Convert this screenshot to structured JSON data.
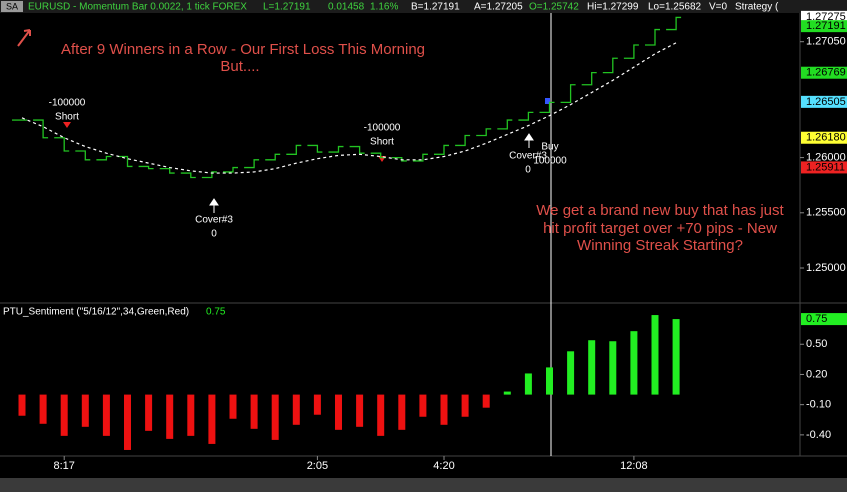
{
  "header": {
    "badge": "SA",
    "symbol": "EURUSD - Momentum Bar 0.0022, 1 tick  FOREX",
    "last": "L=1.27191",
    "change": "0.01458",
    "pct": "1.16%",
    "bid": "B=1.27191",
    "ask": "A=1.27205",
    "open": "O=1.25742",
    "high": "Hi=1.27299",
    "low": "Lo=1.25682",
    "volume": "V=0",
    "strategy": "Strategy ("
  },
  "chart_data": [
    {
      "type": "line",
      "series": [
        {
          "color": "#22c322",
          "values": [
            1.2634,
            1.2618,
            1.2606,
            1.2598,
            1.2601,
            1.2592,
            1.259,
            1.2586,
            1.2582,
            1.2587,
            1.2591,
            1.2598,
            1.2603,
            1.2611,
            1.2605,
            1.261,
            1.2604,
            1.26,
            1.2597,
            1.2603,
            1.2611,
            1.262,
            1.2626,
            1.2634,
            1.2641,
            1.265,
            1.2666,
            1.2677,
            1.269,
            1.2702,
            1.2716,
            1.2727
          ]
        },
        {
          "color": "#ffffff",
          "dashed": true,
          "values": [
            1.2636,
            1.2628,
            1.2618,
            1.261,
            1.2604,
            1.2599,
            1.2595,
            1.2591,
            1.2588,
            1.2586,
            1.2586,
            1.2587,
            1.259,
            1.2595,
            1.2599,
            1.2602,
            1.2603,
            1.2601,
            1.2598,
            1.2598,
            1.2601,
            1.2606,
            1.2613,
            1.2621,
            1.2629,
            1.2638,
            1.2648,
            1.2659,
            1.267,
            1.2682,
            1.2694,
            1.2704
          ]
        }
      ],
      "ylim": [
        1.2471,
        1.2731
      ],
      "yticks": [
        {
          "value": 1.25,
          "label": "1.25000"
        },
        {
          "value": 1.255,
          "label": "1.25500"
        },
        {
          "value": 1.26,
          "label": "1.26000"
        },
        {
          "value": 1.2705,
          "label": "1.27050"
        }
      ],
      "price_markers": [
        {
          "value": 1.27275,
          "label": "1.27275",
          "color": "#ffffff"
        },
        {
          "value": 1.27191,
          "label": "1.27191",
          "color": "#22dd22"
        },
        {
          "value": 1.26769,
          "label": "1.26769",
          "color": "#22dd22"
        },
        {
          "value": 1.26505,
          "label": "1.26505",
          "color": "#55e0ff"
        },
        {
          "value": 1.2618,
          "label": "1.26180",
          "color": "#ffff33"
        },
        {
          "value": 1.25911,
          "label": "1.25911",
          "color": "#ee2222"
        }
      ],
      "annotations": [
        "After 9 Winners in a Row - Our First Loss This Morning",
        "But....",
        "We get a brand new buy that has just",
        "hit profit target over +70 pips - New",
        "Winning Streak Starting?"
      ],
      "trades": [
        [
          "-100000",
          "Short"
        ],
        [
          "Cover#3",
          "0"
        ],
        [
          "-100000",
          "Short"
        ],
        [
          "Cover#3",
          "0"
        ],
        [
          "Buy",
          "100000"
        ]
      ]
    },
    {
      "type": "bar",
      "title": "PTU_Sentiment (\"5/16/12\",34,Green,Red)",
      "current_value": 0.75,
      "up_color": "#22ee22",
      "down_color": "#ee1111",
      "categories": [
        null,
        null,
        "8:17",
        null,
        null,
        null,
        null,
        null,
        null,
        null,
        null,
        null,
        null,
        null,
        "2:05",
        null,
        null,
        null,
        null,
        null,
        "4:20",
        null,
        null,
        null,
        null,
        null,
        null,
        null,
        null,
        "12:08",
        null,
        null
      ],
      "values": [
        -0.21,
        -0.29,
        -0.41,
        -0.32,
        -0.41,
        -0.55,
        -0.36,
        -0.44,
        -0.41,
        -0.49,
        -0.24,
        -0.34,
        -0.45,
        -0.3,
        -0.2,
        -0.35,
        -0.32,
        -0.41,
        -0.35,
        -0.22,
        -0.3,
        -0.22,
        -0.13,
        0.03,
        0.21,
        0.27,
        0.43,
        0.54,
        0.53,
        0.63,
        0.79,
        0.75
      ],
      "ylim": [
        -0.6,
        0.88
      ],
      "yticks": [
        {
          "value": 0.5,
          "label": "0.50"
        },
        {
          "value": 0.2,
          "label": "0.20"
        },
        {
          "value": -0.1,
          "label": "-0.10"
        },
        {
          "value": -0.4,
          "label": "-0.40"
        }
      ]
    }
  ]
}
